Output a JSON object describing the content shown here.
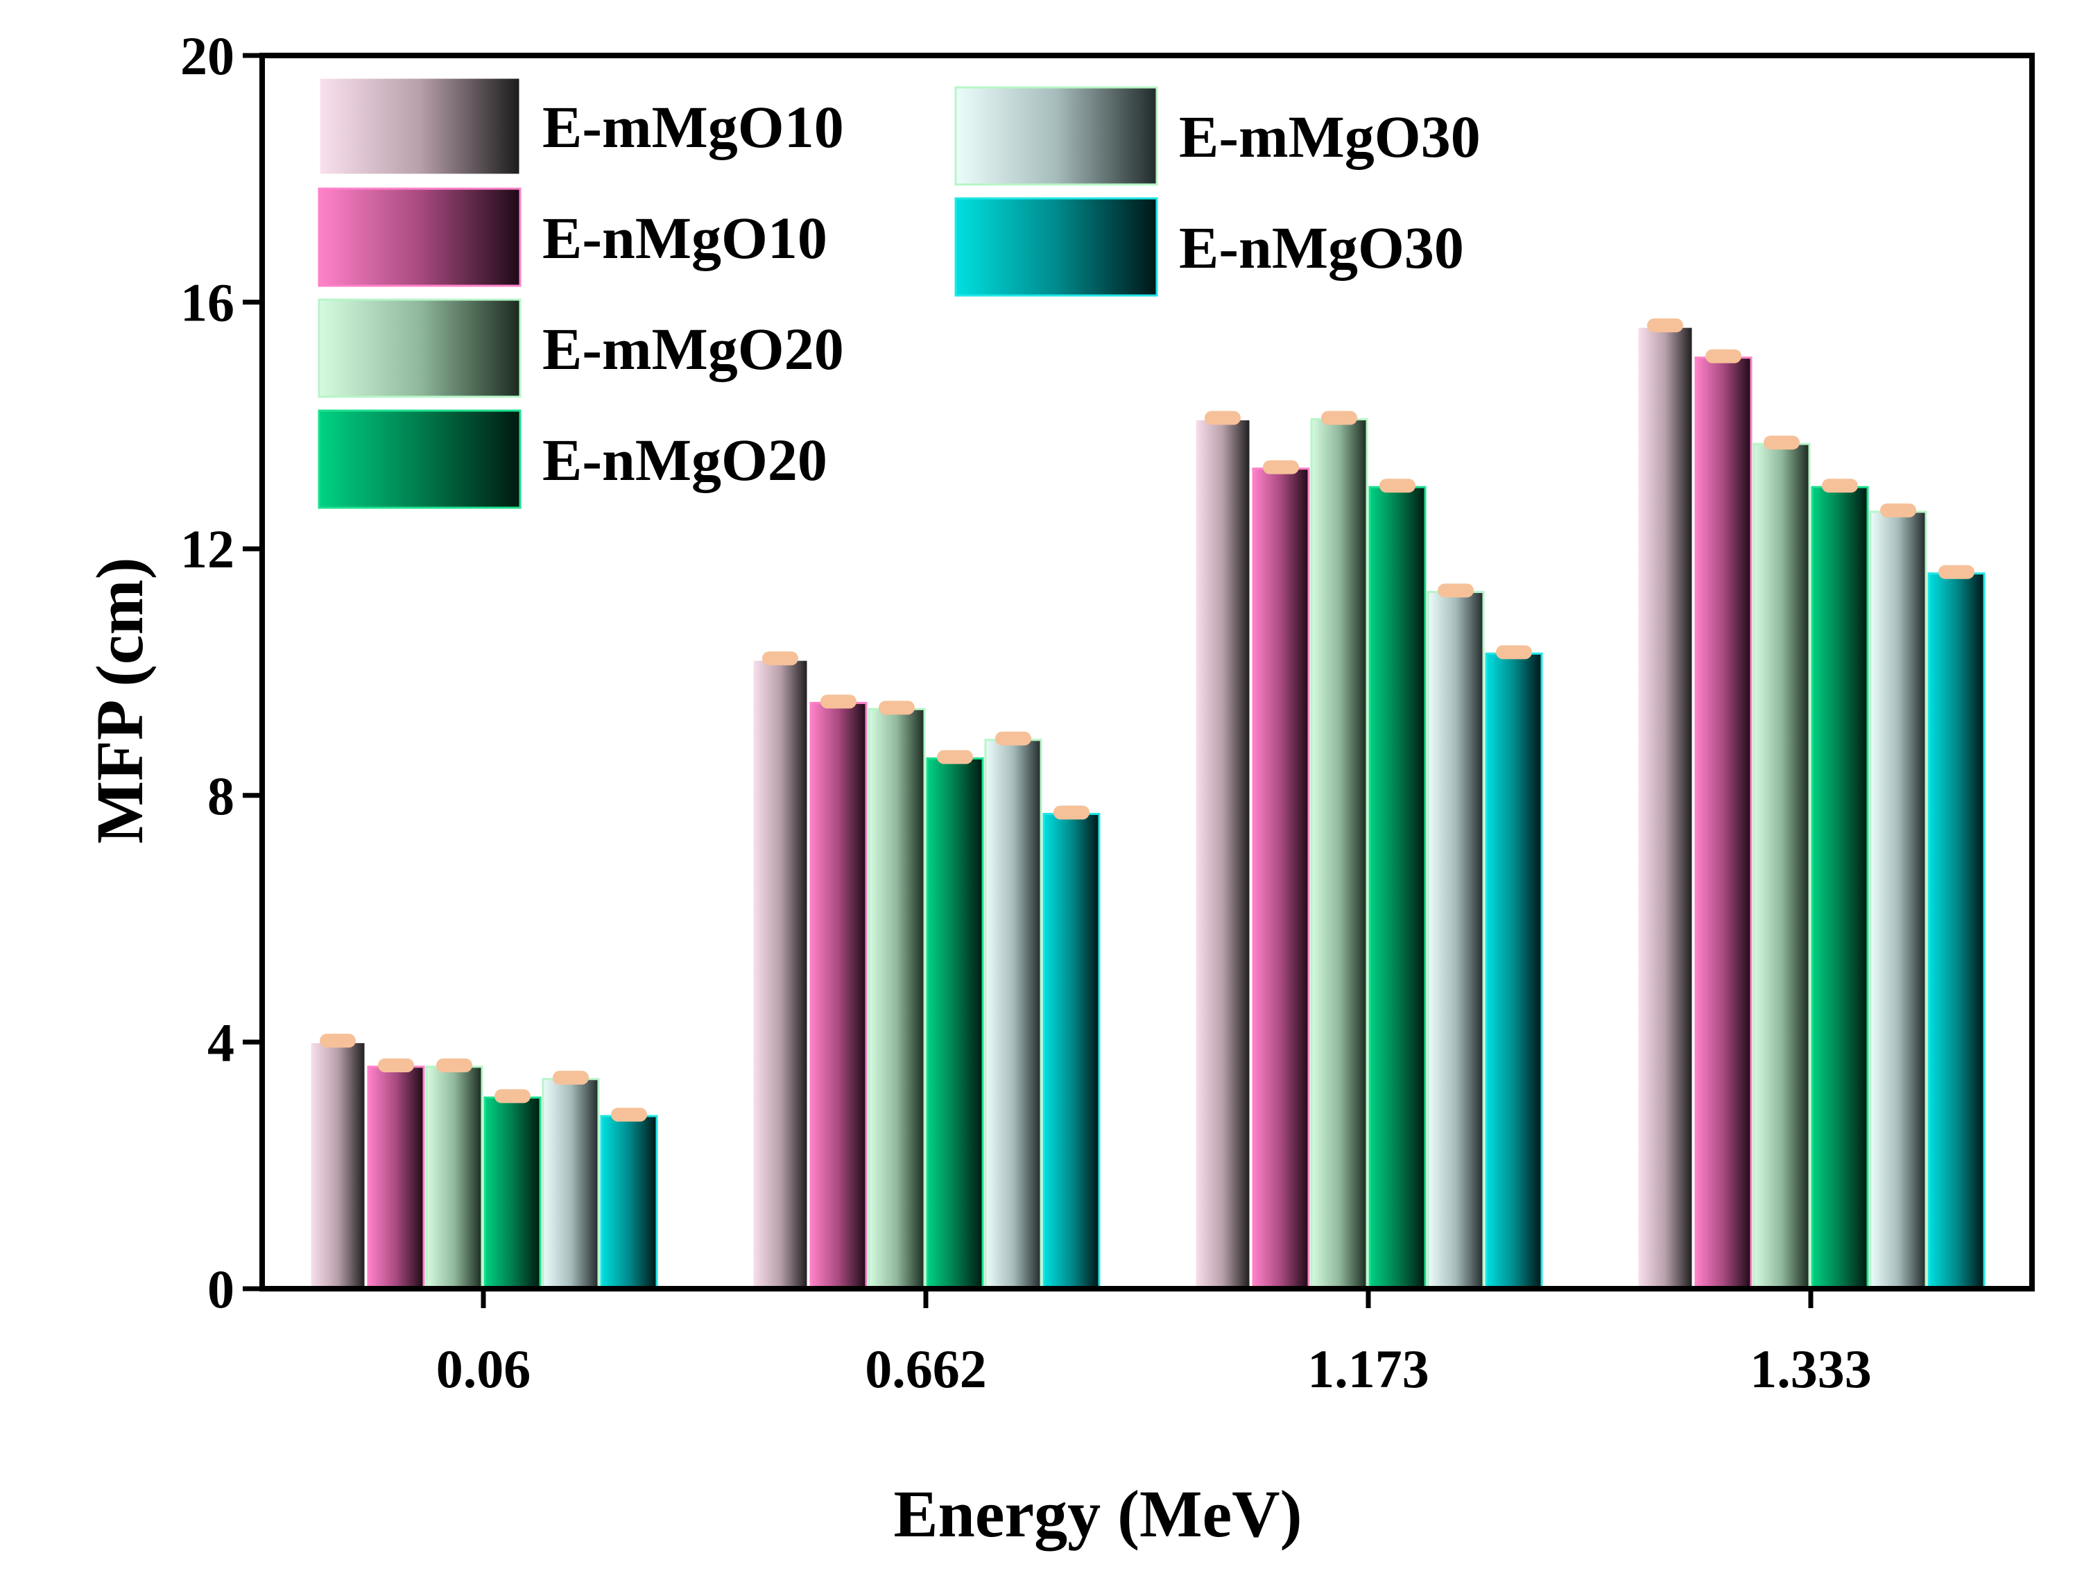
{
  "chart_data": {
    "type": "bar",
    "title": "",
    "xlabel": "Energy (MeV)",
    "ylabel": "MFP (cm)",
    "ylim": [
      0,
      20
    ],
    "yticks": [
      "0",
      "4",
      "8",
      "12",
      "16",
      "20"
    ],
    "categories": [
      "0.06",
      "0.662",
      "1.173",
      "1.333"
    ],
    "series": [
      {
        "name": "E-mMgO10",
        "values": [
          4.0,
          10.2,
          14.1,
          15.6
        ],
        "colors": [
          "#fbe1ee",
          "#b8a0ab",
          "#1b1b1b"
        ],
        "border": "#ffffff"
      },
      {
        "name": "E-nMgO10",
        "values": [
          3.6,
          9.5,
          13.3,
          15.1
        ],
        "colors": [
          "#ff82c8",
          "#a84a80",
          "#1e0a16"
        ],
        "border": "#ff82c8"
      },
      {
        "name": "E-mMgO20",
        "values": [
          3.6,
          9.4,
          14.1,
          13.7
        ],
        "colors": [
          "#d6fbe0",
          "#90b89c",
          "#1b2a1f"
        ],
        "border": "#b7f5c8"
      },
      {
        "name": "E-nMgO20",
        "values": [
          3.1,
          8.6,
          13.0,
          13.0
        ],
        "colors": [
          "#00d283",
          "#007c4d",
          "#001a10"
        ],
        "border": "#1de08f"
      },
      {
        "name": "E-mMgO30",
        "values": [
          3.4,
          8.9,
          11.3,
          12.6
        ],
        "colors": [
          "#ecfdfb",
          "#a6bcbc",
          "#222a2a"
        ],
        "border": "#b7f5c8"
      },
      {
        "name": "E-nMgO30",
        "values": [
          2.8,
          7.7,
          10.3,
          11.6
        ],
        "colors": [
          "#00e0e0",
          "#008a8c",
          "#001616"
        ],
        "border": "#20e6e6"
      }
    ],
    "error_marker_color": "#f6c199",
    "legend": "top-left, two columns"
  }
}
